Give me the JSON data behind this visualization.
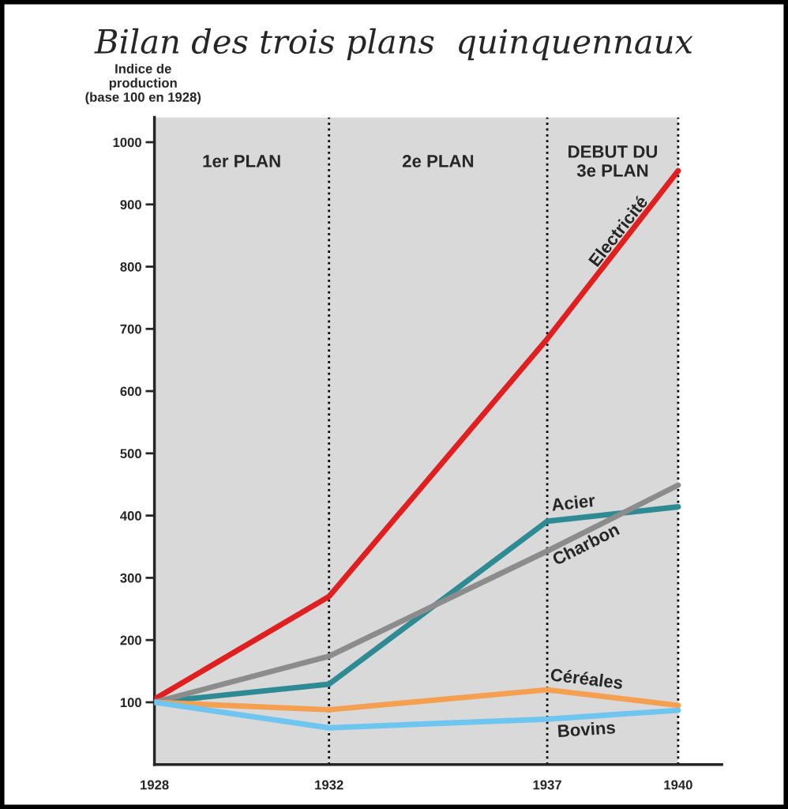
{
  "chart_data": {
    "type": "line",
    "title": "Bilan des trois plans  quinquennaux",
    "ylabel": "Indice de\nproduction\n(base 100 en 1928)",
    "x": [
      1928,
      1932,
      1937,
      1940
    ],
    "xlim": [
      1928,
      1941
    ],
    "xticks": [
      1928,
      1932,
      1937,
      1940
    ],
    "ylim": [
      0,
      1040
    ],
    "yticks": [
      100,
      200,
      300,
      400,
      500,
      600,
      700,
      800,
      900,
      1000
    ],
    "series": [
      {
        "name": "Electricité",
        "color": "#e02020",
        "values": [
          105,
          270,
          684,
          954
        ]
      },
      {
        "name": "Acier",
        "color": "#2e8b94",
        "values": [
          100,
          129,
          391,
          414
        ]
      },
      {
        "name": "Charbon",
        "color": "#8c8c8c",
        "values": [
          100,
          174,
          343,
          449
        ]
      },
      {
        "name": "Céréales",
        "color": "#f5a050",
        "values": [
          100,
          88,
          120,
          95
        ]
      },
      {
        "name": "Bovins",
        "color": "#6ec6f0",
        "values": [
          100,
          59,
          73,
          87
        ]
      }
    ],
    "bands": [
      {
        "axis": "x",
        "from": 1928,
        "to": 1932,
        "label": "1er PLAN",
        "color": "#d9d9d9"
      },
      {
        "axis": "x",
        "from": 1932,
        "to": 1937,
        "label": "2e PLAN",
        "color": "#d9d9d9"
      },
      {
        "axis": "x",
        "from": 1937,
        "to": 1940,
        "label": "DEBUT DU\n3e PLAN",
        "color": "#d9d9d9"
      }
    ],
    "ref_lines": [
      {
        "axis": "x",
        "value": 1932,
        "line_style": "dotted",
        "color": "#000000"
      },
      {
        "axis": "x",
        "value": 1937,
        "line_style": "dotted",
        "color": "#000000"
      },
      {
        "axis": "x",
        "value": 1940,
        "line_style": "dotted",
        "color": "#000000"
      }
    ],
    "grid": false,
    "legend": false,
    "marker": "none",
    "line_style": "solid"
  }
}
